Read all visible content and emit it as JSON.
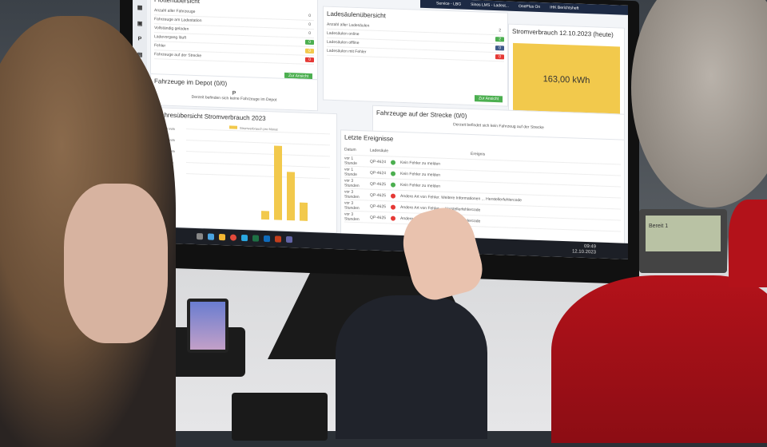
{
  "topbar": {
    "links": [
      "Service - LBG",
      "Sinos LMS - Ladest...",
      "OnePlus On",
      "IHK Berichtsheft"
    ]
  },
  "sidenav": [
    "grid",
    "bus",
    "P",
    "charger"
  ],
  "fleet": {
    "title": "Flottenübersicht",
    "rows": [
      {
        "label": "Anzahl aller Fahrzeuge",
        "value": "0"
      },
      {
        "label": "Fahrzeuge am Ladestation",
        "value": "0"
      },
      {
        "label": "Vollständig geladen",
        "value": "0"
      },
      {
        "label": "Ladevorgang läuft",
        "value": "0",
        "color": "#4caf50"
      },
      {
        "label": "Fehler",
        "value": "0",
        "color": "#f2c94c"
      },
      {
        "label": "Fahrzeuge auf der Strecke",
        "value": "0",
        "color": "#e53935"
      }
    ],
    "extra": "0",
    "button": "Zur Ansicht"
  },
  "chargers": {
    "title": "Ladesäulenübersicht",
    "rows": [
      {
        "label": "Anzahl aller Ladesäulen",
        "value": "2"
      },
      {
        "label": "Ladesäulen online",
        "value": "2",
        "color": "#4caf50"
      },
      {
        "label": "Ladesäulen offline",
        "value": "0",
        "color": "#3f5a8a"
      },
      {
        "label": "Ladesäulen mit Fehler",
        "value": "0",
        "color": "#e53935"
      }
    ],
    "button": "Zur Ansicht"
  },
  "power": {
    "title": "Stromverbrauch 12.10.2023 (heute)",
    "value": "163,00 kWh",
    "color": "#f2c94c"
  },
  "depot": {
    "title": "Fahrzeuge im Depot (0/0)",
    "icon": "P",
    "text": "Derzeit befinden sich keine Fahrzeuge im Depot"
  },
  "route": {
    "title": "Fahrzeuge auf der Strecke (0/0)",
    "text": "Derzeit befindet sich kein Fahrzeug auf der Strecke"
  },
  "chart_data": {
    "type": "bar",
    "title": "Jahresübersicht Stromverbrauch 2023",
    "legend": "Stromverbrauch pro Monat",
    "yticks": [
      "14000 kWh",
      "12000 kWh",
      "10000 kWh",
      "8000 kWh",
      "6000 kWh"
    ],
    "ylim": [
      0,
      14000
    ],
    "values": [
      1500,
      13000,
      8500,
      3200
    ],
    "color": "#f2c94c"
  },
  "events": {
    "title": "Letzte Ereignisse",
    "headers": [
      "Datum",
      "Ladesäule",
      "Ereignis"
    ],
    "rows": [
      {
        "date": "vor 1 Stunde",
        "station": "QP-4624",
        "text": "Kein Fehler zu melden",
        "ok": true
      },
      {
        "date": "vor 1 Stunde",
        "station": "QP-4624",
        "text": "Kein Fehler zu melden",
        "ok": true
      },
      {
        "date": "vor 3 Stunden",
        "station": "QP-4625",
        "text": "Kein Fehler zu melden",
        "ok": true
      },
      {
        "date": "vor 3 Stunden",
        "station": "QP-4625",
        "text": "Andere Art von Fehler. Weitere Informationen ... Herstellerfehlercode",
        "ok": false
      },
      {
        "date": "vor 3 Stunden",
        "station": "QP-4625",
        "text": "Andere Art von Fehler ... Herstellerfehlercode",
        "ok": false
      },
      {
        "date": "vor 3 Stunden",
        "station": "QP-4625",
        "text": "Andere Art von Fehler ... Herstellerfehlercode",
        "ok": false
      }
    ]
  },
  "clock": {
    "time": "09:49",
    "date": "12.10.2023"
  },
  "deskphone": {
    "text": "Bereit 1"
  }
}
